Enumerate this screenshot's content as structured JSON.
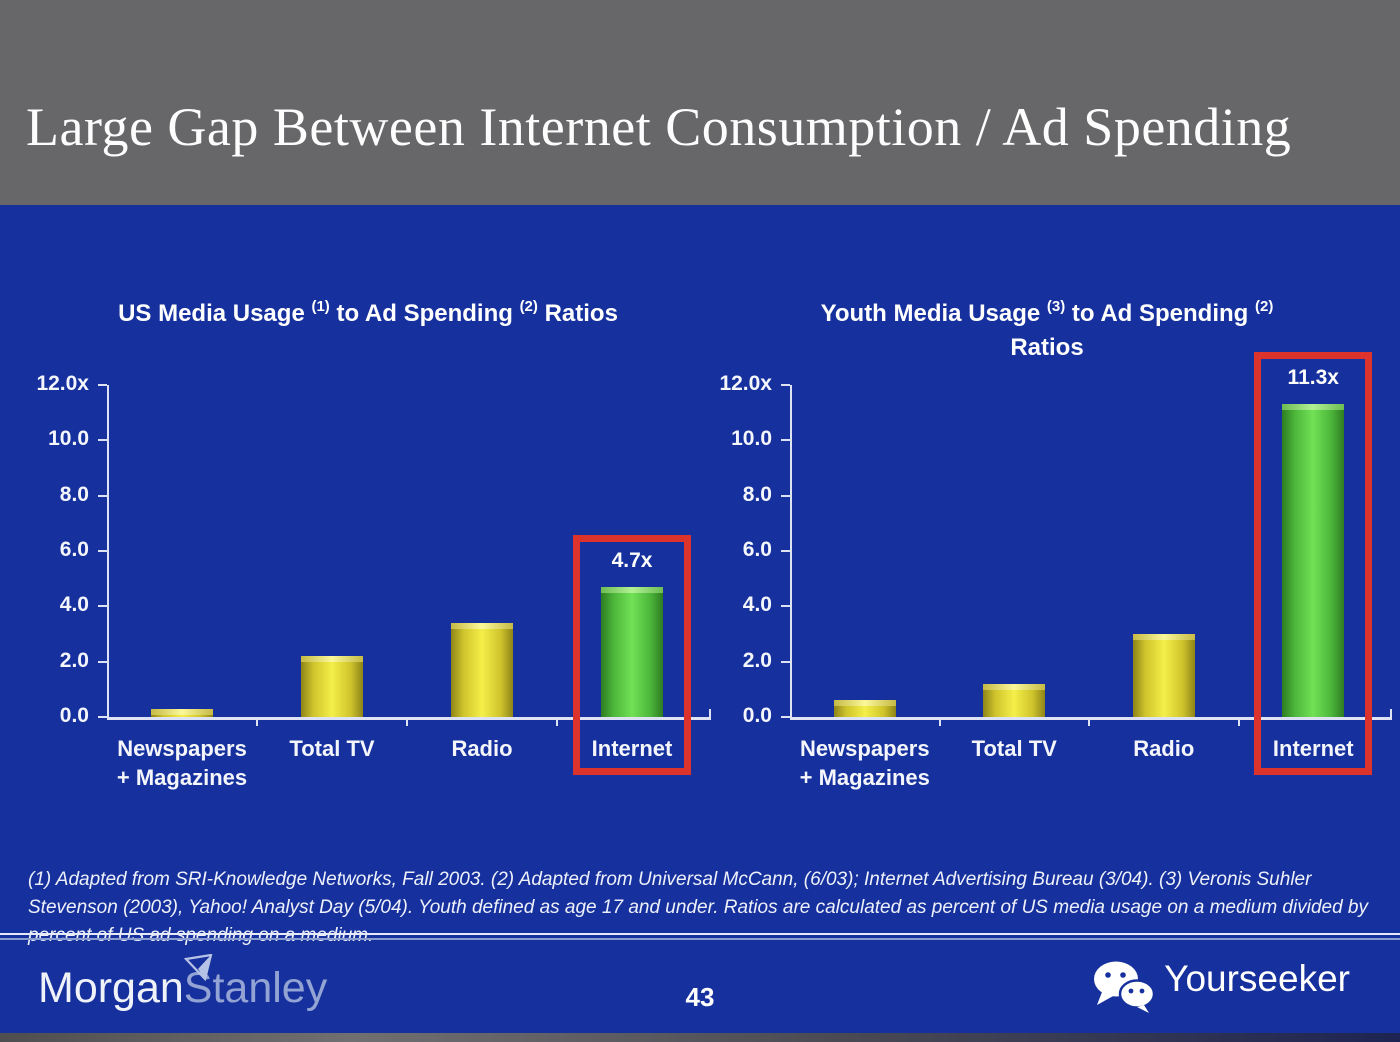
{
  "slide": {
    "title": "Large Gap Between Internet Consumption / Ad Spending",
    "page_number": "43",
    "footnote": "(1) Adapted from SRI-Knowledge Networks, Fall 2003.  (2) Adapted from Universal McCann, (6/03); Internet Advertising Bureau (3/04). (3) Veronis Suhler Stevenson (2003), Yahoo! Analyst Day (5/04).  Youth defined as age 17 and under.  Ratios are calculated as percent of US media usage on a medium divided by percent of US ad spending on a medium."
  },
  "footer": {
    "logo_morgan": "Morgan",
    "logo_stanley": "Stanley",
    "brand": "Yourseeker",
    "wechat_icon": "wechat-icon",
    "morgan_stanley_triangle_icon": "triangle-logo-icon"
  },
  "colors": {
    "background_blue": "#16319d",
    "header_gray": "#67676a",
    "bar_yellow": "#f4ef49",
    "bar_green": "#72e156",
    "highlight_red": "#dc342c",
    "axis": "#dde3f4",
    "text_white": "#ffffff"
  },
  "chart_data": [
    {
      "type": "bar",
      "title": "US Media Usage (1) to Ad Spending (2) Ratios",
      "title_segments": [
        {
          "t": "US Media Usage "
        },
        {
          "s": "(1)"
        },
        {
          "t": " to Ad Spending "
        },
        {
          "s": "(2)"
        },
        {
          "t": " Ratios"
        }
      ],
      "categories": [
        [
          "Newspapers",
          "+ Magazines"
        ],
        [
          "Total TV"
        ],
        [
          "Radio"
        ],
        [
          "Internet"
        ]
      ],
      "values": [
        0.3,
        2.2,
        3.4,
        4.7
      ],
      "bar_colors": [
        "yellow",
        "yellow",
        "yellow",
        "green"
      ],
      "highlight_index": 3,
      "data_labels": [
        {
          "index": 3,
          "text": "4.7x"
        }
      ],
      "y_ticks": [
        "12.0x",
        "10.0",
        "8.0",
        "6.0",
        "4.0",
        "2.0",
        "0.0"
      ],
      "ylim": [
        0,
        12
      ],
      "grid": false,
      "legend": false
    },
    {
      "type": "bar",
      "title": "Youth Media Usage (3) to Ad Spending (2) Ratios",
      "title_segments": [
        {
          "t": "Youth Media Usage "
        },
        {
          "s": "(3)"
        },
        {
          "t": " to Ad Spending "
        },
        {
          "s": "(2)"
        },
        {
          "br": true
        },
        {
          "t": "Ratios"
        }
      ],
      "categories": [
        [
          "Newspapers",
          "+ Magazines"
        ],
        [
          "Total TV"
        ],
        [
          "Radio"
        ],
        [
          "Internet"
        ]
      ],
      "values": [
        0.6,
        1.2,
        3.0,
        11.3
      ],
      "bar_colors": [
        "yellow",
        "yellow",
        "yellow",
        "green"
      ],
      "highlight_index": 3,
      "data_labels": [
        {
          "index": 3,
          "text": "11.3x"
        }
      ],
      "y_ticks": [
        "12.0x",
        "10.0",
        "8.0",
        "6.0",
        "4.0",
        "2.0",
        "0.0"
      ],
      "ylim": [
        0,
        12
      ],
      "grid": false,
      "legend": false
    }
  ]
}
